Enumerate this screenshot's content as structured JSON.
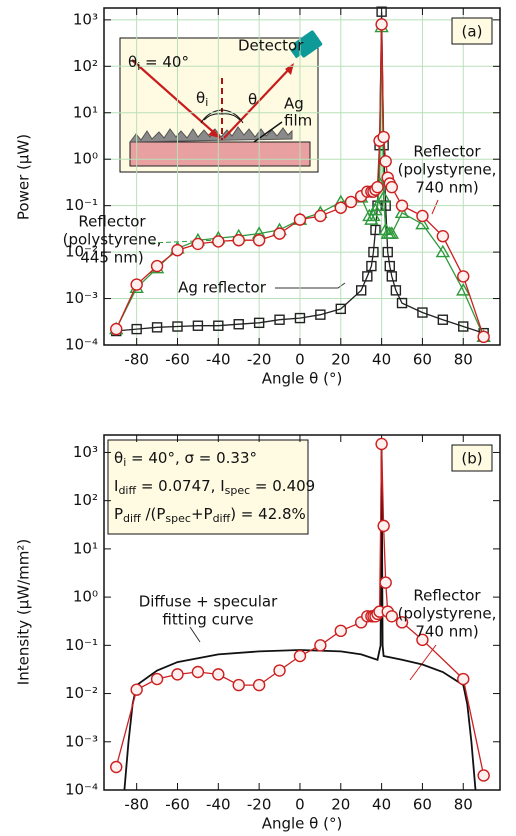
{
  "chart_data": [
    {
      "type": "line",
      "panel_label": "(a)",
      "x_label": "Angle θ (°)",
      "y_label": "Power (μW)",
      "log_y": true,
      "grid": true,
      "xlim": [
        -96,
        98
      ],
      "xticks": [
        -80,
        -60,
        -40,
        -20,
        0,
        20,
        40,
        60,
        80
      ],
      "ylim": [
        0.0001,
        1800
      ],
      "yticks": [
        {
          "value": 0.0001,
          "label": "10⁻⁴"
        },
        {
          "value": 0.001,
          "label": "10⁻³"
        },
        {
          "value": 0.01,
          "label": "10⁻²"
        },
        {
          "value": 0.1,
          "label": "10⁻¹"
        },
        {
          "value": 1,
          "label": "10⁰"
        },
        {
          "value": 10,
          "label": "10¹"
        },
        {
          "value": 100,
          "label": "10²"
        },
        {
          "value": 1000,
          "label": "10³"
        }
      ],
      "inset": {
        "incidence": [
          "θ",
          "i",
          " = 40°"
        ],
        "detector": "Detector",
        "theta_i": [
          "θ",
          "i"
        ],
        "theta": "θ",
        "film": [
          "Ag",
          "film"
        ]
      },
      "series": [
        {
          "name": [
            "Ag reflector"
          ],
          "color": "#222222",
          "marker": "square",
          "x": [
            -90,
            -80,
            -70,
            -60,
            -50,
            -40,
            -30,
            -20,
            -10,
            0,
            10,
            20,
            30,
            33,
            35,
            36,
            37,
            38,
            39,
            40,
            41,
            42,
            43,
            44,
            45,
            47,
            50,
            60,
            70,
            80,
            90
          ],
          "values": [
            0.0002,
            0.00022,
            0.00024,
            0.00025,
            0.00026,
            0.00026,
            0.00028,
            0.0003,
            0.00035,
            0.00038,
            0.00045,
            0.0006,
            0.0015,
            0.003,
            0.005,
            0.01,
            0.03,
            0.1,
            2,
            1500,
            2,
            0.1,
            0.01,
            0.005,
            0.003,
            0.0015,
            0.0008,
            0.0005,
            0.00035,
            0.00025,
            0.00018
          ]
        },
        {
          "name": [
            "Reflector",
            "(polystyrene,",
            "445 nm)"
          ],
          "color": "#2f9a3c",
          "marker": "triangle",
          "x": [
            -90,
            -80,
            -70,
            -60,
            -50,
            -40,
            -30,
            -20,
            -10,
            0,
            10,
            20,
            30,
            34,
            35,
            36,
            37,
            38,
            39,
            40,
            41,
            42,
            43,
            44,
            45,
            50,
            60,
            70,
            80,
            90
          ],
          "values": [
            0.00022,
            0.0017,
            0.0045,
            0.012,
            0.018,
            0.02,
            0.022,
            0.025,
            0.03,
            0.05,
            0.07,
            0.12,
            0.15,
            0.06,
            0.05,
            0.06,
            0.08,
            0.1,
            0.3,
            700,
            0.15,
            0.03,
            0.025,
            0.025,
            0.025,
            0.07,
            0.04,
            0.01,
            0.0015,
            0.00015
          ]
        },
        {
          "name": [
            "Reflector",
            "(polystyrene,",
            "740 nm)"
          ],
          "color": "#cc1f1f",
          "marker": "circle",
          "x": [
            -90,
            -80,
            -70,
            -60,
            -50,
            -40,
            -30,
            -20,
            -10,
            0,
            10,
            20,
            25,
            30,
            33,
            35,
            36,
            37,
            38,
            39,
            40,
            41,
            42,
            43,
            44,
            45,
            50,
            60,
            70,
            80,
            90
          ],
          "values": [
            0.00022,
            0.002,
            0.005,
            0.011,
            0.015,
            0.017,
            0.018,
            0.018,
            0.025,
            0.05,
            0.06,
            0.09,
            0.12,
            0.16,
            0.2,
            0.2,
            0.2,
            0.22,
            0.25,
            2.5,
            800,
            3,
            0.9,
            0.4,
            0.3,
            0.25,
            0.1,
            0.06,
            0.022,
            0.003,
            0.00015
          ]
        }
      ]
    },
    {
      "type": "line",
      "panel_label": "(b)",
      "x_label": "Angle θ (°)",
      "y_label": "Intensity (μW/mm²)",
      "log_y": true,
      "grid": false,
      "xlim": [
        -96,
        98
      ],
      "xticks": [
        -80,
        -60,
        -40,
        -20,
        0,
        20,
        40,
        60,
        80
      ],
      "ylim": [
        0.0001,
        2300
      ],
      "yticks": [
        {
          "value": 0.0001,
          "label": "10⁻⁴"
        },
        {
          "value": 0.001,
          "label": "10⁻³"
        },
        {
          "value": 0.01,
          "label": "10⁻²"
        },
        {
          "value": 0.1,
          "label": "10⁻¹"
        },
        {
          "value": 1,
          "label": "10⁰"
        },
        {
          "value": 10,
          "label": "10¹"
        },
        {
          "value": 100,
          "label": "10²"
        },
        {
          "value": 1000,
          "label": "10³"
        }
      ],
      "annotation": [
        [
          "θ",
          "i",
          " = 40°, σ = 0.33°"
        ],
        [
          "I",
          "diff",
          " = 0.0747, I",
          "spec",
          " = 0.409"
        ],
        [
          "P",
          "diff",
          " /(P",
          "spec",
          "+P",
          "diff",
          ") = 42.8%"
        ]
      ],
      "series": [
        {
          "name": [
            "Diffuse + specular",
            "fitting curve"
          ],
          "color": "#111111",
          "marker": null,
          "x": [
            -86,
            -84,
            -82,
            -80,
            -70,
            -60,
            -40,
            -20,
            0,
            20,
            30,
            38,
            39.5,
            40,
            40.5,
            41,
            50,
            60,
            70,
            80,
            82,
            84,
            86
          ],
          "values": [
            0.0001,
            0.001,
            0.006,
            0.015,
            0.03,
            0.045,
            0.065,
            0.075,
            0.08,
            0.075,
            0.065,
            0.05,
            0.1,
            1500,
            0.1,
            0.06,
            0.05,
            0.04,
            0.028,
            0.015,
            0.006,
            0.001,
            0.0001
          ]
        },
        {
          "name": [
            "Reflector",
            "(polystyrene,",
            "740 nm)"
          ],
          "color": "#cc1f1f",
          "marker": "circle",
          "x": [
            -90,
            -80,
            -70,
            -60,
            -50,
            -40,
            -30,
            -20,
            -10,
            0,
            10,
            20,
            30,
            33,
            35,
            36,
            37,
            38,
            39,
            40,
            41,
            42,
            43,
            45,
            50,
            60,
            80,
            90
          ],
          "values": [
            0.0003,
            0.012,
            0.02,
            0.025,
            0.028,
            0.025,
            0.015,
            0.015,
            0.03,
            0.06,
            0.1,
            0.2,
            0.3,
            0.4,
            0.4,
            0.4,
            0.4,
            0.45,
            0.5,
            1500,
            30,
            2,
            0.5,
            0.4,
            0.3,
            0.13,
            0.02,
            0.0002
          ]
        }
      ]
    }
  ]
}
